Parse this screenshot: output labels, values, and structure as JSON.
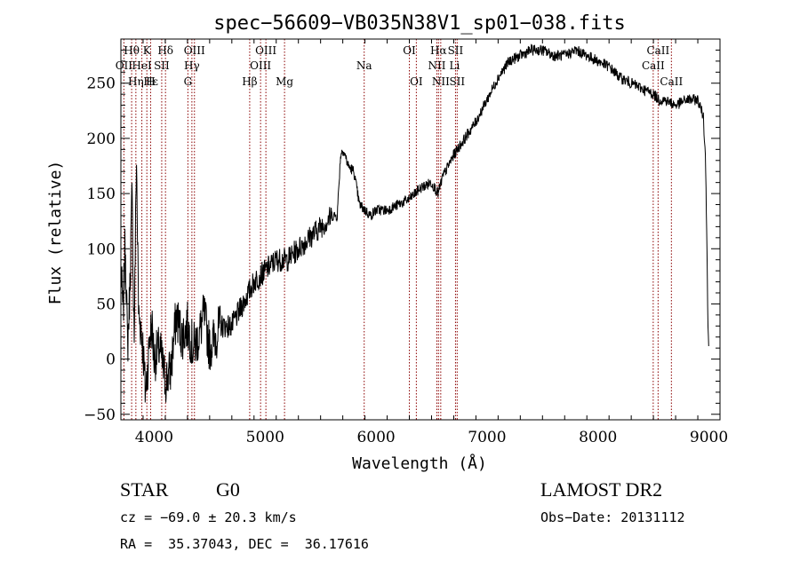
{
  "chart_data": {
    "type": "line",
    "title": "spec−56609−VB035N38V1_sp01−038.fits",
    "xlabel": "Wavelength (Å)",
    "ylabel": "Flux (relative)",
    "xlim": [
      3700,
      9100
    ],
    "ylim": [
      -55,
      290
    ],
    "xticks": [
      4000,
      5000,
      6000,
      7000,
      8000,
      9000
    ],
    "xtick_labels": [
      "4000",
      "5000",
      "6000",
      "7000",
      "8000",
      "9000"
    ],
    "yticks": [
      -50,
      0,
      50,
      100,
      150,
      200,
      250
    ],
    "ytick_labels": [
      "−50",
      "0",
      "50",
      "100",
      "150",
      "200",
      "250"
    ],
    "grid": false,
    "series": [
      {
        "x": [
          3700,
          3720,
          3740,
          3760,
          3780,
          3800,
          3820,
          3840,
          3860,
          3880,
          3900,
          3920,
          3940,
          3960,
          3980,
          4000,
          4050,
          4100,
          4150,
          4200,
          4250,
          4300,
          4350,
          4400,
          4450,
          4500,
          4600,
          4700,
          4800,
          4850,
          4900,
          5000,
          5100,
          5200,
          5300,
          5400,
          5500,
          5560,
          5600,
          5650,
          5680,
          5700,
          5720,
          5750,
          5800,
          5850,
          5900,
          5950,
          6000,
          6100,
          6200,
          6300,
          6400,
          6500,
          6560,
          6600,
          6650,
          6700,
          6800,
          6900,
          7000,
          7100,
          7200,
          7300,
          7400,
          7500,
          7600,
          7700,
          7800,
          7900,
          8000,
          8100,
          8200,
          8300,
          8400,
          8500,
          8550,
          8600,
          8700,
          8800,
          8900,
          8950,
          8970,
          8980,
          8990,
          9000
        ],
        "y": [
          80,
          40,
          110,
          10,
          60,
          150,
          20,
          185,
          40,
          30,
          10,
          -30,
          -10,
          20,
          30,
          0,
          10,
          -20,
          -10,
          40,
          20,
          30,
          10,
          20,
          40,
          10,
          30,
          30,
          50,
          60,
          70,
          80,
          90,
          90,
          100,
          110,
          120,
          125,
          130,
          130,
          185,
          190,
          185,
          175,
          170,
          140,
          135,
          130,
          135,
          135,
          140,
          145,
          155,
          160,
          150,
          165,
          175,
          185,
          200,
          215,
          235,
          255,
          270,
          275,
          280,
          280,
          275,
          275,
          280,
          275,
          270,
          265,
          255,
          250,
          245,
          240,
          235,
          235,
          230,
          235,
          235,
          220,
          180,
          120,
          40,
          0
        ],
        "color": "#000000"
      }
    ],
    "annotations": [
      {
        "label": "Hθ",
        "x": 3797,
        "row": 1
      },
      {
        "label": "OII",
        "x": 3727,
        "row": 2
      },
      {
        "label": "Hη",
        "x": 3835,
        "row": 3
      },
      {
        "label": "K",
        "x": 3934,
        "row": 1
      },
      {
        "label": "HeI",
        "x": 3889,
        "row": 2
      },
      {
        "label": "SII",
        "x": 4068,
        "row": 2
      },
      {
        "label": "Hε",
        "x": 3970,
        "row": 3
      },
      {
        "label": "H",
        "x": 3968,
        "row": 3
      },
      {
        "label": "Hδ",
        "x": 4102,
        "row": 1
      },
      {
        "label": "OIII",
        "x": 4363,
        "row": 1
      },
      {
        "label": "Hγ",
        "x": 4340,
        "row": 2
      },
      {
        "label": "G",
        "x": 4304,
        "row": 3
      },
      {
        "label": "Hβ",
        "x": 4861,
        "row": 3
      },
      {
        "label": "OIII",
        "x": 5007,
        "row": 1
      },
      {
        "label": "OIII",
        "x": 4959,
        "row": 2
      },
      {
        "label": "Mg",
        "x": 5175,
        "row": 3
      },
      {
        "label": "Na",
        "x": 5893,
        "row": 2
      },
      {
        "label": "OI",
        "x": 6300,
        "row": 1
      },
      {
        "label": "OI",
        "x": 6363,
        "row": 3
      },
      {
        "label": "Hα",
        "x": 6563,
        "row": 1
      },
      {
        "label": "SII",
        "x": 6716,
        "row": 1
      },
      {
        "label": "NII",
        "x": 6548,
        "row": 2
      },
      {
        "label": "Li",
        "x": 6708,
        "row": 2
      },
      {
        "label": "NII",
        "x": 6583,
        "row": 3
      },
      {
        "label": "SII",
        "x": 6731,
        "row": 3
      },
      {
        "label": "CaII",
        "x": 8542,
        "row": 1
      },
      {
        "label": "CaII",
        "x": 8498,
        "row": 2
      },
      {
        "label": "CaII",
        "x": 8662,
        "row": 3
      }
    ],
    "line_markers": [
      3727,
      3797,
      3835,
      3889,
      3934,
      3968,
      4068,
      4102,
      4304,
      4340,
      4363,
      4861,
      4959,
      5007,
      5175,
      5893,
      6300,
      6363,
      6548,
      6563,
      6583,
      6716,
      6731,
      8498,
      8542,
      8662
    ],
    "marker_color": "#8b0000"
  },
  "footer": {
    "object_class": "STAR",
    "subclass": "G0",
    "survey": "LAMOST DR2",
    "redshift": "cz = −69.0 ± 20.3 km/s",
    "obs_date": "Obs−Date: 20131112",
    "coords": "RA =  35.37043, DEC =  36.17616"
  }
}
